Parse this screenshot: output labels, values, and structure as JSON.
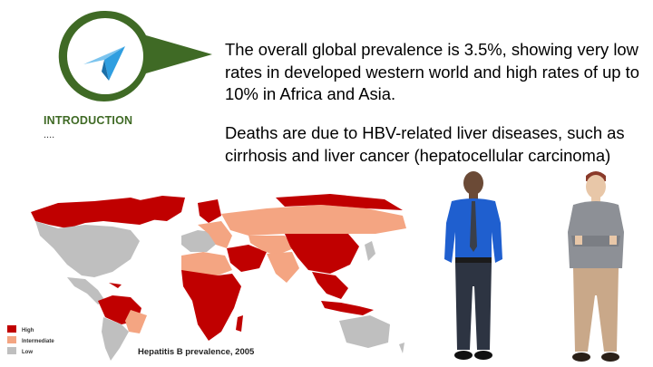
{
  "section": {
    "title": "INTRODUCTION",
    "dots": "...."
  },
  "icons": {
    "badge": "paper-plane-icon"
  },
  "colors": {
    "badge_green": "#3f6a25",
    "plane_blue": "#2f9ee0",
    "prevalence_high": "#c00000",
    "prevalence_intermediate": "#f4a582",
    "prevalence_low": "#bfbfbf"
  },
  "content": {
    "paragraph1": "The overall global prevalence is 3.5%, showing very low rates in developed western world and high rates of up to 10% in Africa and Asia.",
    "paragraph2": "Deaths are due to HBV-related liver diseases, such as cirrhosis and liver cancer (hepatocellular carcinoma)"
  },
  "map": {
    "caption": "Hepatitis B prevalence, 2005",
    "legend": [
      {
        "label": "High",
        "color": "#c00000"
      },
      {
        "label": "Intermediate",
        "color": "#f4a582"
      },
      {
        "label": "Low",
        "color": "#bfbfbf"
      }
    ]
  }
}
